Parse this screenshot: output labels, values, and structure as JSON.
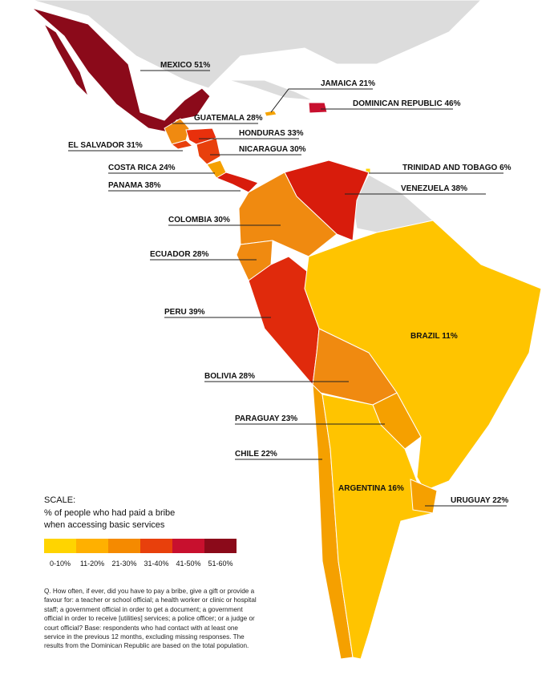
{
  "countries": [
    {
      "label": "MEXICO 51%",
      "color": "#8b0a1a"
    },
    {
      "label": "JAMAICA 21%",
      "color": "#f5a300"
    },
    {
      "label": "DOMINICAN REPUBLIC 46%",
      "color": "#c8102e"
    },
    {
      "label": "GUATEMALA 28%",
      "color": "#f08a10"
    },
    {
      "label": "HONDURAS 33%",
      "color": "#e8300c"
    },
    {
      "label": "EL SALVADOR 31%",
      "color": "#e8400c"
    },
    {
      "label": "NICARAGUA 30%",
      "color": "#e8400c"
    },
    {
      "label": "COSTA RICA 24%",
      "color": "#f5a000"
    },
    {
      "label": "TRINIDAD AND TOBAGO 6%",
      "color": "#ffd400"
    },
    {
      "label": "PANAMA 38%",
      "color": "#d81c0c"
    },
    {
      "label": "VENEZUELA 38%",
      "color": "#d81c0c"
    },
    {
      "label": "COLOMBIA 30%",
      "color": "#f08a10"
    },
    {
      "label": "ECUADOR 28%",
      "color": "#f08a10"
    },
    {
      "label": "PERU 39%",
      "color": "#e02a0c"
    },
    {
      "label": "BRAZIL 11%",
      "color": "#ffc400"
    },
    {
      "label": "BOLIVIA 28%",
      "color": "#f08a10"
    },
    {
      "label": "PARAGUAY 23%",
      "color": "#f5a000"
    },
    {
      "label": "CHILE 22%",
      "color": "#f5a000"
    },
    {
      "label": "ARGENTINA 16%",
      "color": "#ffc400"
    },
    {
      "label": "URUGUAY 22%",
      "color": "#f5a000"
    }
  ],
  "scale": {
    "title": "SCALE:",
    "description": "% of people who had paid a bribe when accessing basic services",
    "bins": [
      {
        "label": "0-10%",
        "color": "#ffd400"
      },
      {
        "label": "11-20%",
        "color": "#ffb000"
      },
      {
        "label": "21-30%",
        "color": "#f58a00"
      },
      {
        "label": "31-40%",
        "color": "#e8400c"
      },
      {
        "label": "41-50%",
        "color": "#c8102e"
      },
      {
        "label": "51-60%",
        "color": "#8b0a1a"
      }
    ]
  },
  "footnote": "Q. How often, if ever, did you have to pay a bribe, give a gift or provide a favour for: a teacher or school official; a health worker or clinic or hospital staff; a government official in order to get a document; a government official in order to receive [utilities] services; a police officer; or a judge or court official? Base: respondents who had contact with at least one service in the previous 12 months, excluding missing responses. The results from the Dominican Republic are based on the total population."
}
